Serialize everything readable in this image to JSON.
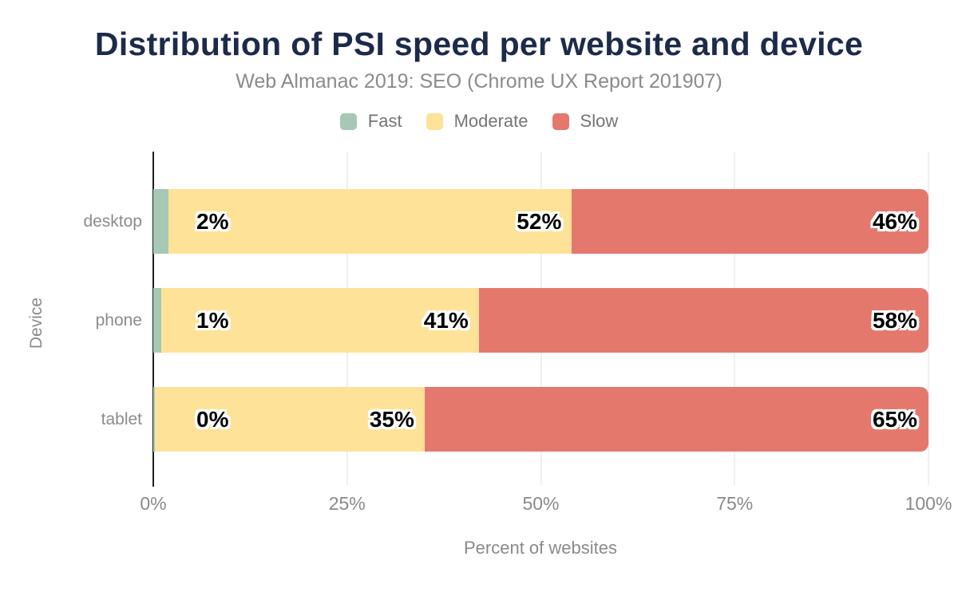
{
  "header": {
    "title": "Distribution of PSI speed per website and device",
    "subtitle": "Web Almanac 2019: SEO (Chrome UX Report 201907)"
  },
  "chart_data": {
    "type": "bar",
    "orientation": "horizontal",
    "stacked": true,
    "title": "Distribution of PSI speed per website and device",
    "subtitle": "Web Almanac 2019: SEO (Chrome UX Report 201907)",
    "categories": [
      "desktop",
      "phone",
      "tablet"
    ],
    "series": [
      {
        "name": "Fast",
        "color": "#a6c8b5",
        "values": [
          2,
          1,
          0
        ]
      },
      {
        "name": "Moderate",
        "color": "#fde298",
        "values": [
          52,
          41,
          35
        ]
      },
      {
        "name": "Slow",
        "color": "#e5786d",
        "values": [
          46,
          58,
          65
        ]
      }
    ],
    "value_labels": [
      [
        "2%",
        "52%",
        "46%"
      ],
      [
        "1%",
        "41%",
        "58%"
      ],
      [
        "0%",
        "35%",
        "65%"
      ]
    ],
    "x_ticks": [
      "0%",
      "25%",
      "50%",
      "75%",
      "100%"
    ],
    "xlim": [
      0,
      100
    ],
    "xlabel": "Percent of websites",
    "ylabel": "Device",
    "grid": "vertical",
    "legend_position": "top",
    "legend": [
      "Fast",
      "Moderate",
      "Slow"
    ]
  },
  "colors": {
    "background": "#ffffff",
    "title": "#1c2b4a",
    "subtitle": "#8b8b8b",
    "legend_label": "#757575",
    "category_label": "#8b8b8b",
    "tick_label": "#8a8a8a",
    "axis_title": "#8a8a8a",
    "gridline": "#f0f0f0",
    "axis_line": "#1f1f1f",
    "value_label_text": "#000000",
    "value_label_outline": "#ffffff",
    "fast": "#a6c8b5",
    "moderate": "#fde298",
    "slow": "#e5786d"
  }
}
